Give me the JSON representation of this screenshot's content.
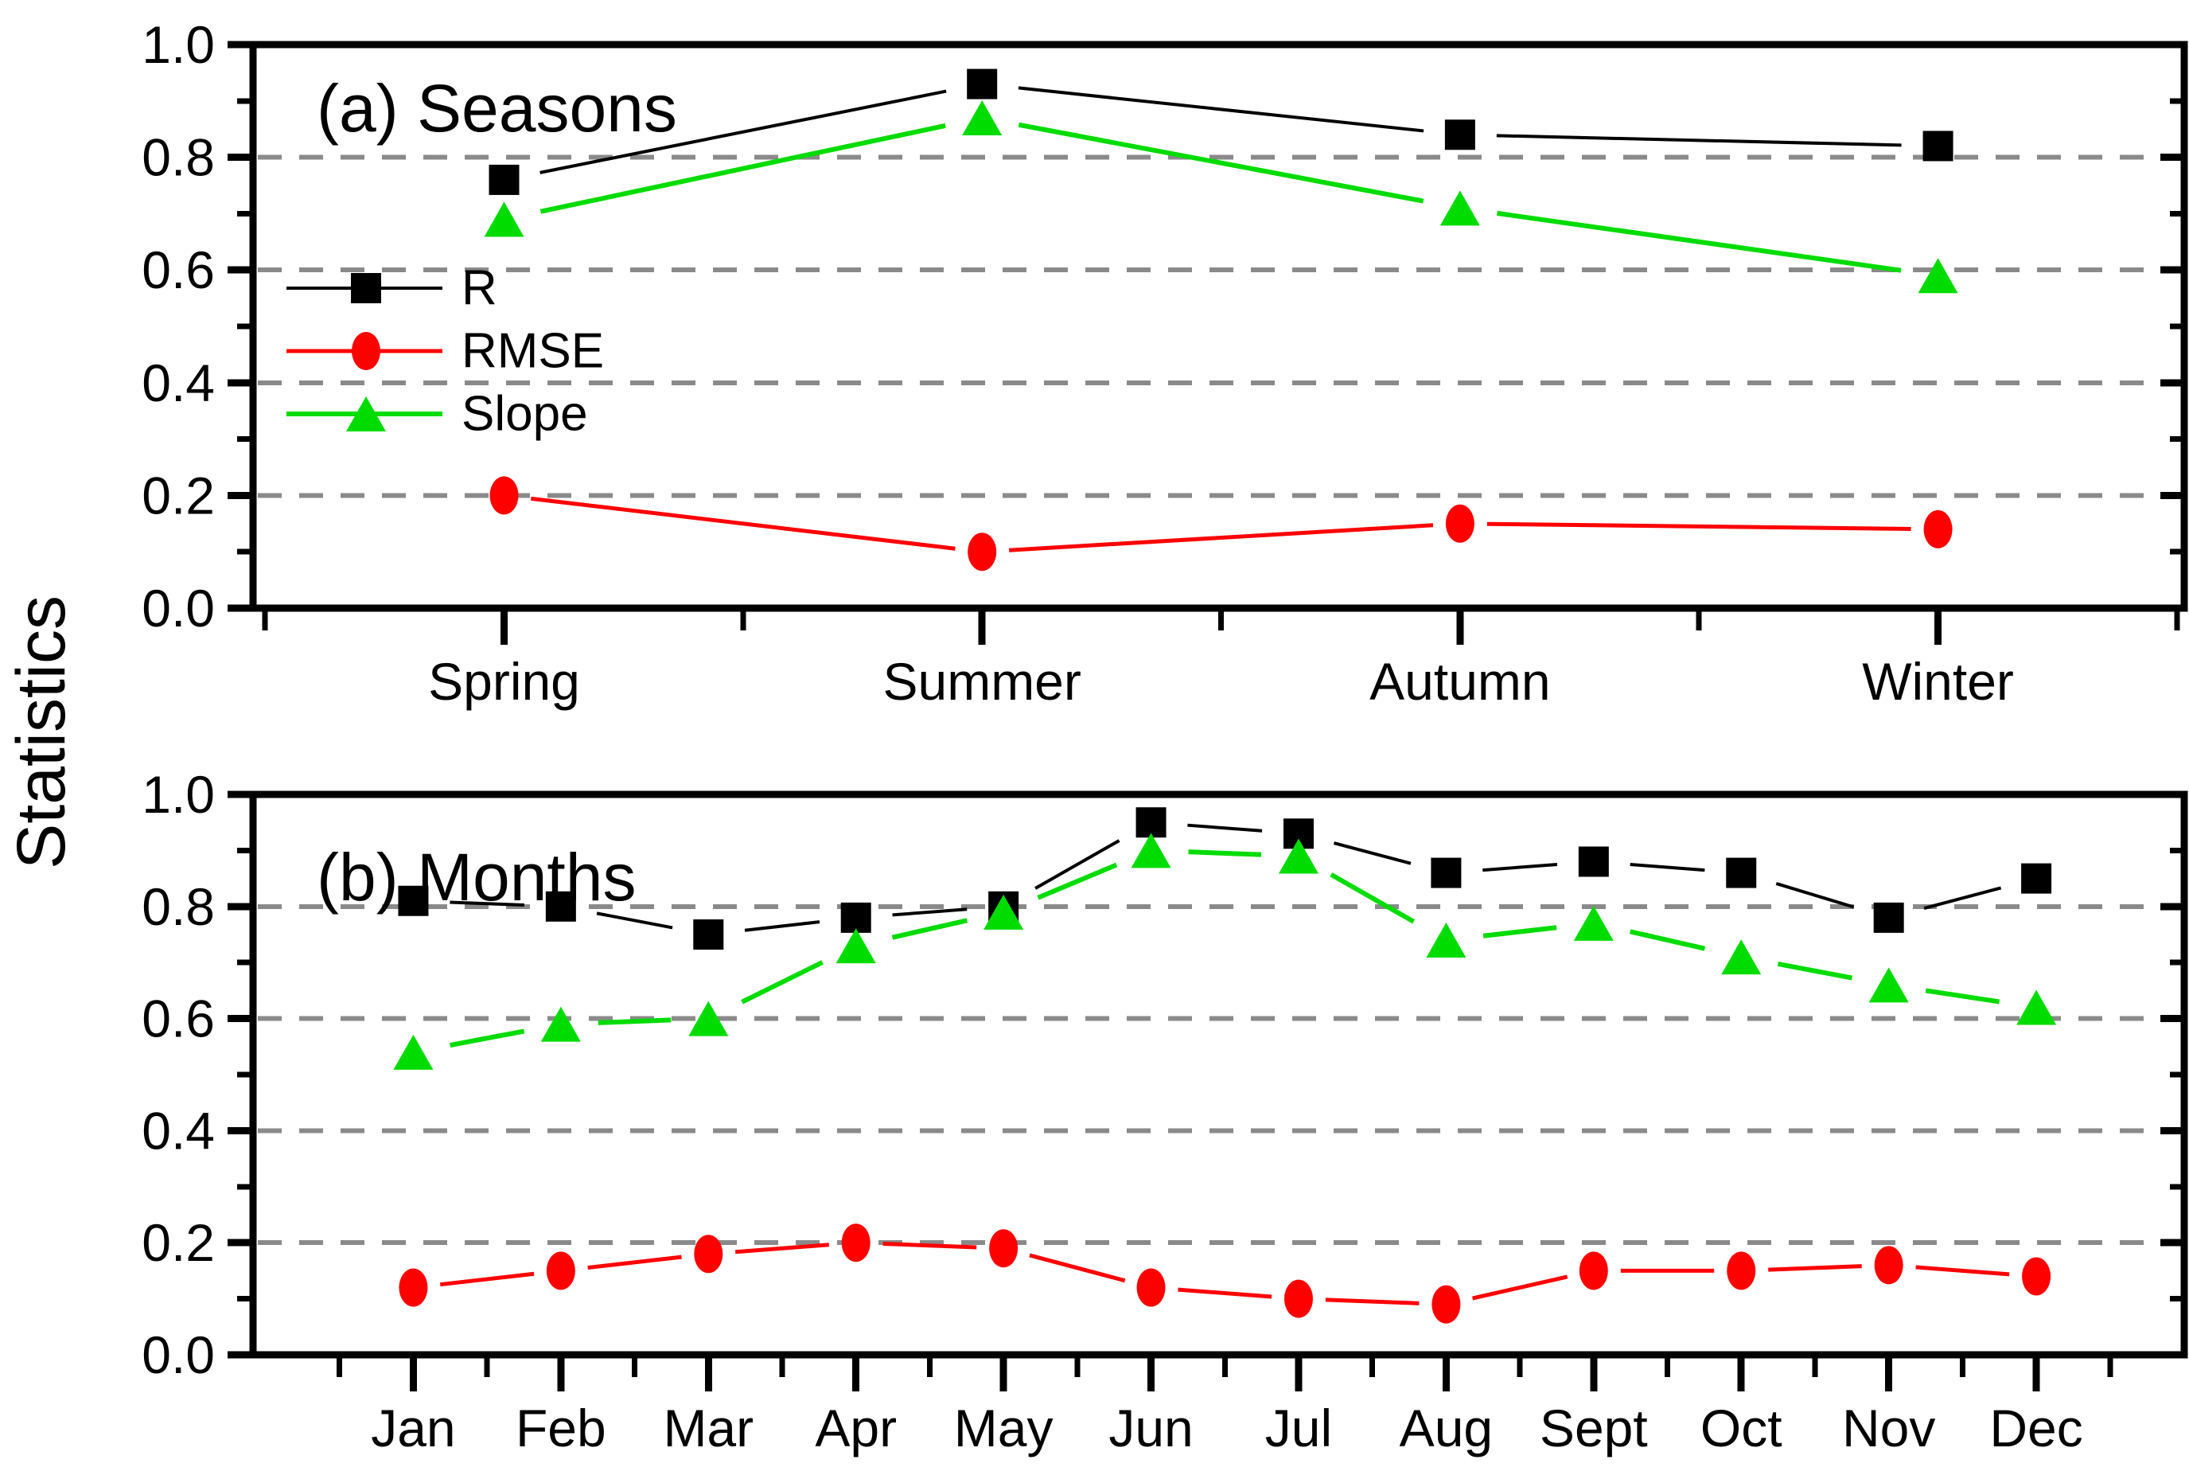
{
  "labels": {
    "ylabel": "Statistics",
    "ytick_labels": [
      "0.0",
      "0.2",
      "0.4",
      "0.6",
      "0.8",
      "1.0"
    ]
  },
  "legend": {
    "entries": [
      "R",
      "RMSE",
      "Slope"
    ],
    "position": "inside-top-left-panel-a"
  },
  "colors": {
    "r_series": "#000000",
    "rmse_series": "#ff0000",
    "slope_series": "#00dc00",
    "gridline": "#8a8a8a",
    "axis": "#000000",
    "background": "#ffffff"
  },
  "chart_data": [
    {
      "type": "line",
      "title": "(a) Seasons",
      "xlabel": "",
      "ylabel": "Statistics",
      "ylim": [
        0.0,
        1.0
      ],
      "yticks": [
        0.0,
        0.2,
        0.4,
        0.6,
        0.8,
        1.0
      ],
      "grid_values": [
        0.2,
        0.4,
        0.6,
        0.8
      ],
      "grid": "dashed-horizontal",
      "legend_position": "inside-left",
      "categories": [
        "Spring",
        "Summer",
        "Autumn",
        "Winter"
      ],
      "series": [
        {
          "name": "R",
          "marker": "square",
          "color": "#000000",
          "values": [
            0.76,
            0.93,
            0.84,
            0.82
          ]
        },
        {
          "name": "RMSE",
          "marker": "circle",
          "color": "#ff0000",
          "values": [
            0.2,
            0.1,
            0.15,
            0.14
          ]
        },
        {
          "name": "Slope",
          "marker": "triangle",
          "color": "#00dc00",
          "values": [
            0.69,
            0.87,
            0.71,
            0.59
          ]
        }
      ]
    },
    {
      "type": "line",
      "title": "(b) Months",
      "xlabel": "",
      "ylabel": "Statistics",
      "ylim": [
        0.0,
        1.0
      ],
      "yticks": [
        0.0,
        0.2,
        0.4,
        0.6,
        0.8,
        1.0
      ],
      "grid_values": [
        0.2,
        0.4,
        0.6,
        0.8
      ],
      "grid": "dashed-horizontal",
      "legend_position": "none",
      "categories": [
        "Jan",
        "Feb",
        "Mar",
        "Apr",
        "May",
        "Jun",
        "Jul",
        "Aug",
        "Sept",
        "Oct",
        "Nov",
        "Dec"
      ],
      "series": [
        {
          "name": "R",
          "marker": "square",
          "color": "#000000",
          "values": [
            0.81,
            0.8,
            0.75,
            0.78,
            0.8,
            0.95,
            0.93,
            0.86,
            0.88,
            0.86,
            0.78,
            0.85
          ]
        },
        {
          "name": "RMSE",
          "marker": "circle",
          "color": "#ff0000",
          "values": [
            0.12,
            0.15,
            0.18,
            0.2,
            0.19,
            0.12,
            0.1,
            0.09,
            0.15,
            0.15,
            0.16,
            0.14
          ]
        },
        {
          "name": "Slope",
          "marker": "triangle",
          "color": "#00dc00",
          "values": [
            0.54,
            0.59,
            0.6,
            0.73,
            0.79,
            0.9,
            0.89,
            0.74,
            0.77,
            0.71,
            0.66,
            0.62
          ]
        }
      ]
    }
  ]
}
